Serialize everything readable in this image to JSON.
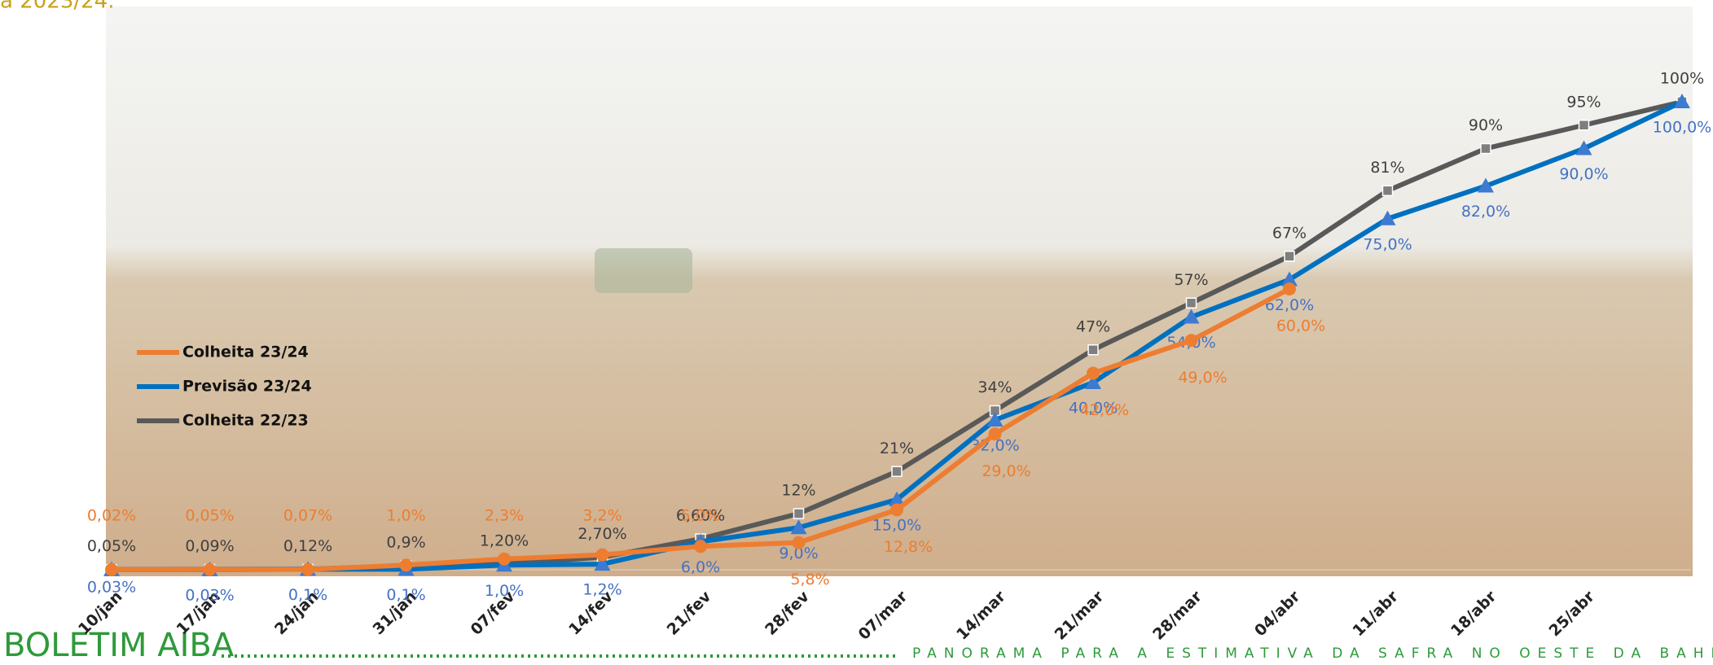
{
  "header": {
    "caption": "a 2023/24."
  },
  "chart_data": {
    "type": "line",
    "categories": [
      "10/jan",
      "17/jan",
      "24/jan",
      "31/jan",
      "07/fev",
      "14/fev",
      "21/fev",
      "28/fev",
      "07/mar",
      "14/mar",
      "21/mar",
      "28/mar",
      "04/abr",
      "11/abr",
      "18/abr",
      "25/abr",
      null
    ],
    "ylim": [
      0,
      100
    ],
    "series": [
      {
        "name": "Colheita 23/24",
        "color": "#ed7d31",
        "values": [
          0.02,
          0.05,
          0.07,
          1.0,
          2.3,
          3.2,
          5.0,
          5.8,
          12.8,
          29.0,
          42.0,
          49.0,
          60.0,
          null,
          null,
          null,
          null
        ],
        "value_labels": [
          "0,02%",
          "0,05%",
          "0,07%",
          "1,0%",
          "2,3%",
          "3,2%",
          "5,0%",
          "5,8%",
          "12,8%",
          "29,0%",
          "42,0%",
          "49,0%",
          "60,0%",
          null,
          null,
          null,
          null
        ]
      },
      {
        "name": "Previsão 23/24",
        "color": "#0070c0",
        "values": [
          0.03,
          0.03,
          0.1,
          0.1,
          1.0,
          1.2,
          6.0,
          9.0,
          15.0,
          32.0,
          40.0,
          54.0,
          62.0,
          75.0,
          82.0,
          90.0,
          100.0
        ],
        "value_labels": [
          "0,03%",
          "0,03%",
          "0,1%",
          "0,1%",
          "1,0%",
          "1,2%",
          "6,0%",
          "9,0%",
          "15,0%",
          "32,0%",
          "40,0%",
          "54,0%",
          "62,0%",
          "75,0%",
          "82,0%",
          "90,0%",
          "100,0%"
        ]
      },
      {
        "name": "Colheita 22/23",
        "color": "#595959",
        "values": [
          0.05,
          0.09,
          0.12,
          0.9,
          1.2,
          2.7,
          6.6,
          12,
          21,
          34,
          47,
          57,
          67,
          81,
          90,
          95,
          100
        ],
        "value_labels": [
          "0,05%",
          "0,09%",
          "0,12%",
          "0,9%",
          "1,20%",
          "2,70%",
          "6,60%",
          "12%",
          "21%",
          "34%",
          "47%",
          "57%",
          "67%",
          "81%",
          "90%",
          "95%",
          "100%"
        ]
      }
    ]
  },
  "footer": {
    "brand": "BOLETIM AIBA",
    "tagline": "PANORAMA PARA A ESTIMATIVA DA SAFRA NO OESTE DA BAHIA"
  }
}
